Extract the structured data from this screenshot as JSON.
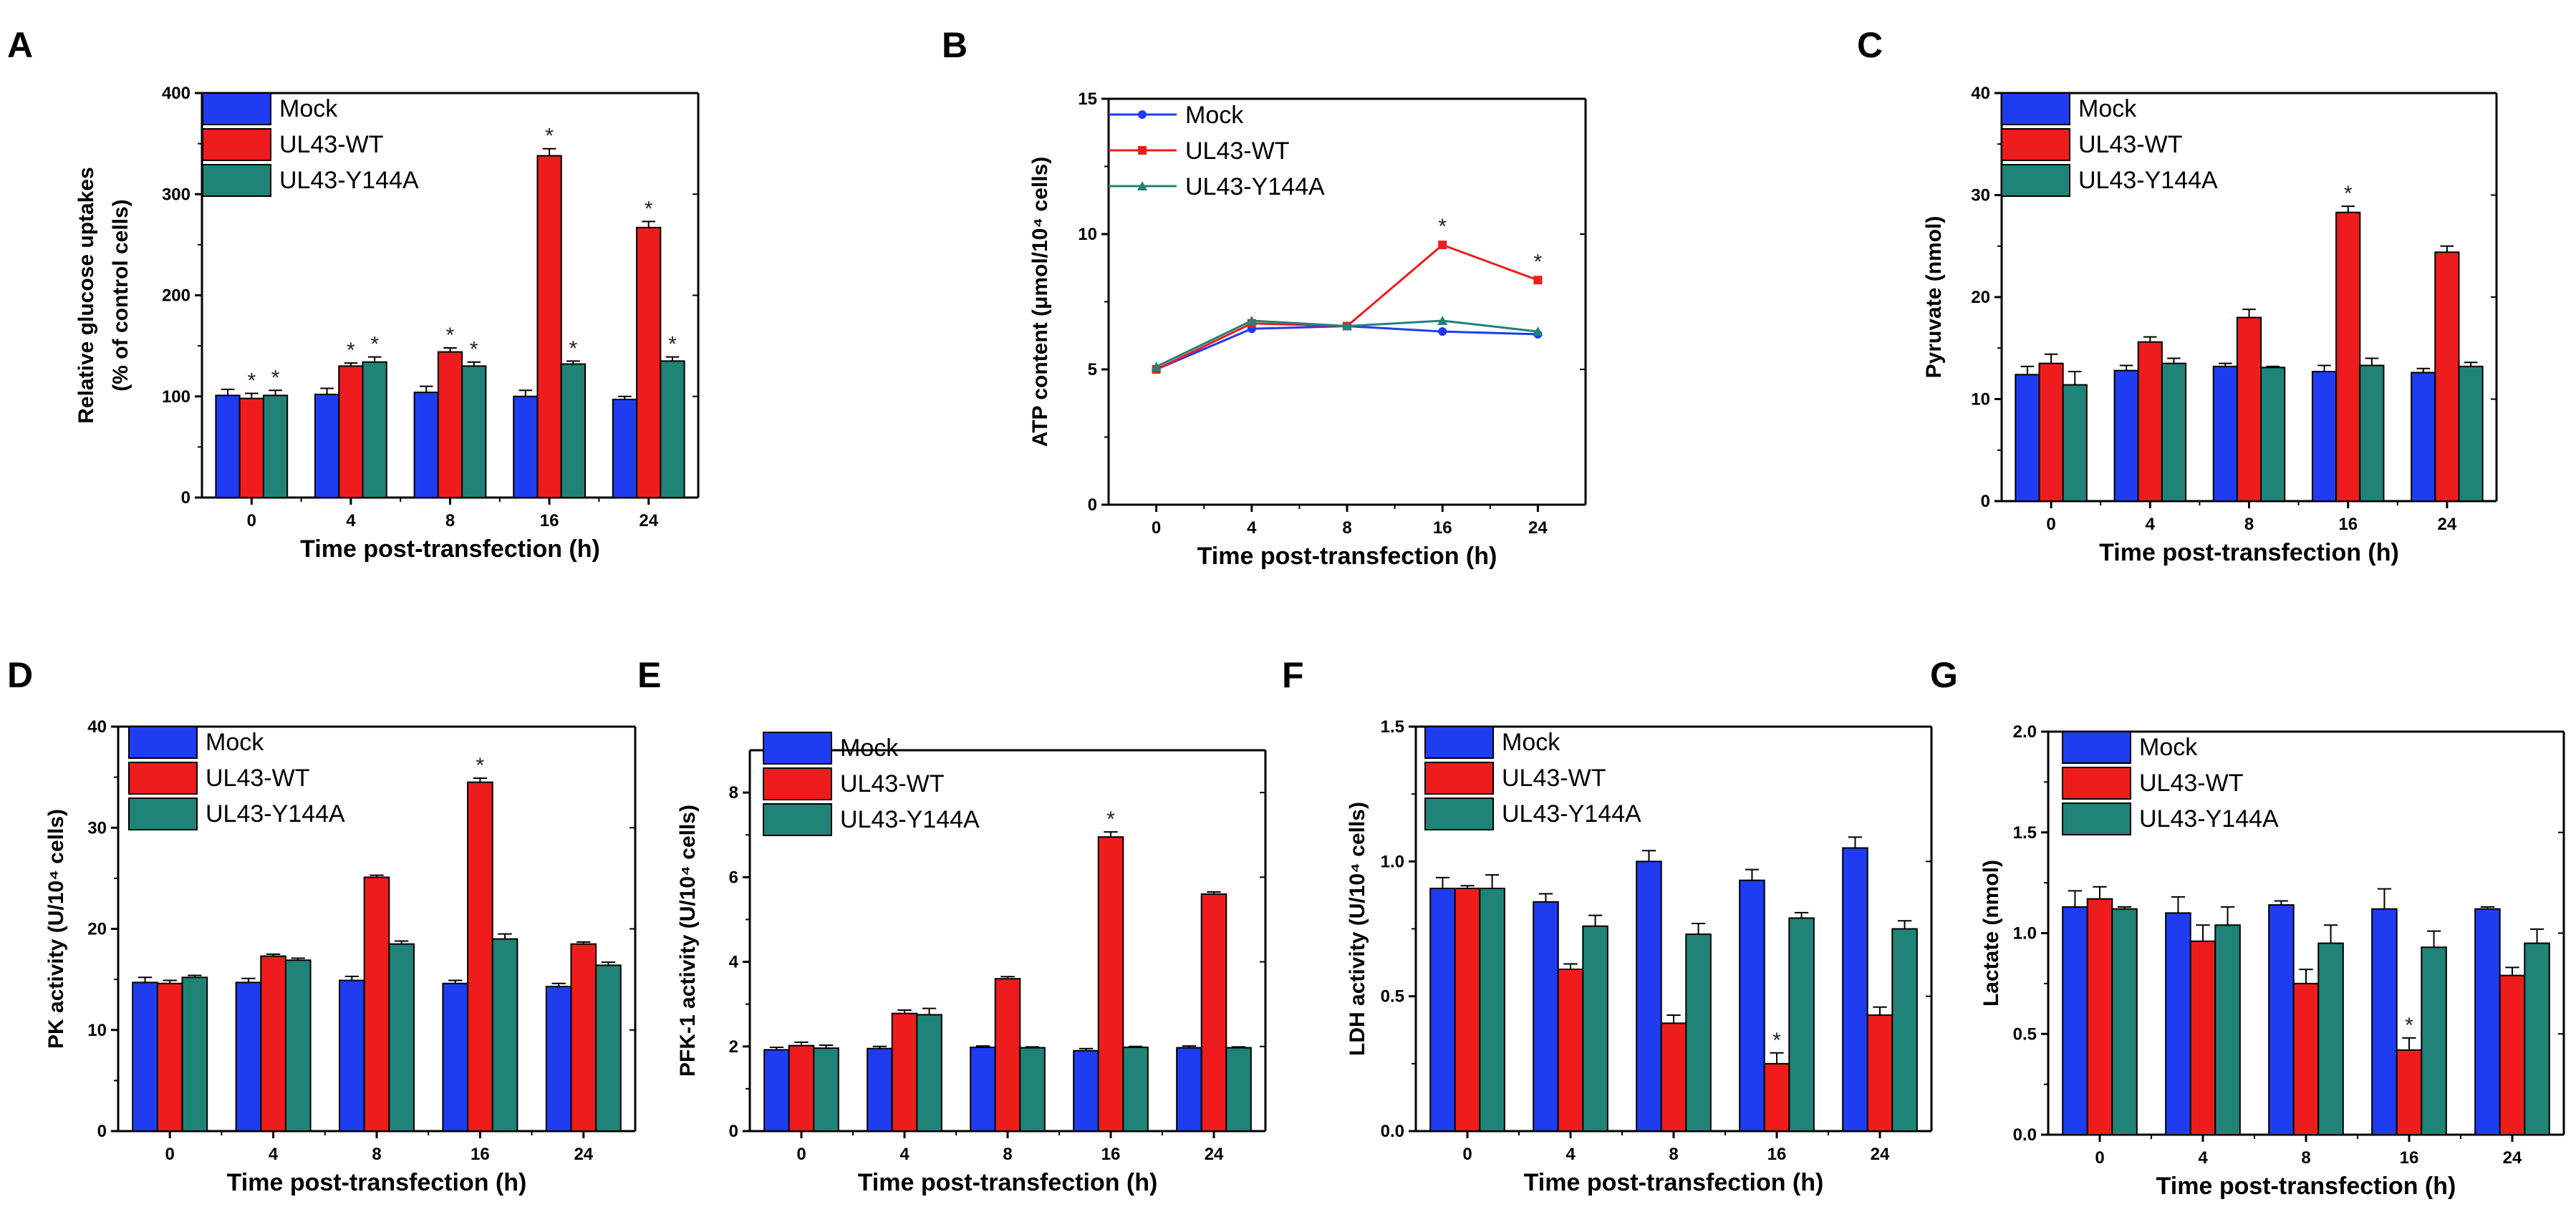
{
  "series_colors": {
    "Mock": "#1f3cf0",
    "UL43-WT": "#ee1c1c",
    "UL43-Y144A": "#1f8377"
  },
  "chart_data": [
    {
      "panel": "A",
      "type": "bar",
      "categories": [
        "0",
        "4",
        "8",
        "16",
        "24"
      ],
      "ylabel": "Relative glucose uptakes",
      "ylabel2": "(% of control cells)",
      "xlabel": "Time post-transfection (h)",
      "ylim": [
        0,
        400
      ],
      "yticks": [
        "0",
        "100",
        "200",
        "300",
        "400"
      ],
      "series": [
        {
          "name": "Mock",
          "values": [
            101,
            102,
            104,
            100,
            97
          ],
          "errors": [
            6,
            6,
            6,
            6,
            3
          ]
        },
        {
          "name": "UL43-WT",
          "values": [
            98,
            130,
            144,
            338,
            267
          ],
          "errors": [
            5,
            3,
            4,
            7,
            6
          ],
          "stars": [
            true,
            true,
            true,
            true,
            true
          ]
        },
        {
          "name": "UL43-Y144A",
          "values": [
            101,
            134,
            130,
            132,
            135
          ],
          "errors": [
            5,
            5,
            4,
            3,
            4
          ],
          "stars": [
            true,
            true,
            true,
            true,
            true
          ]
        }
      ],
      "legend": [
        "Mock",
        "UL43-WT",
        "UL43-Y144A"
      ]
    },
    {
      "panel": "B",
      "type": "line",
      "categories": [
        "0",
        "4",
        "8",
        "16",
        "24"
      ],
      "ylabel": "ATP content (μmol/10⁴ cells)",
      "xlabel": "Time post-transfection (h)",
      "ylim": [
        0,
        15
      ],
      "yticks": [
        "0",
        "5",
        "10",
        "15"
      ],
      "series": [
        {
          "name": "Mock",
          "values": [
            5.0,
            6.5,
            6.6,
            6.4,
            6.3
          ]
        },
        {
          "name": "UL43-WT",
          "values": [
            5.0,
            6.7,
            6.6,
            9.6,
            8.3
          ],
          "stars": [
            false,
            false,
            false,
            true,
            true
          ]
        },
        {
          "name": "UL43-Y144A",
          "values": [
            5.1,
            6.8,
            6.6,
            6.8,
            6.4
          ]
        }
      ],
      "legend": [
        "Mock",
        "UL43-WT",
        "UL43-Y144A"
      ]
    },
    {
      "panel": "C",
      "type": "bar",
      "categories": [
        "0",
        "4",
        "8",
        "16",
        "24"
      ],
      "ylabel": "Pyruvate (nmol)",
      "xlabel": "Time post-transfection (h)",
      "ylim": [
        0,
        40
      ],
      "yticks": [
        "0",
        "10",
        "20",
        "30",
        "40"
      ],
      "series": [
        {
          "name": "Mock",
          "values": [
            12.4,
            12.8,
            13.2,
            12.7,
            12.6
          ],
          "errors": [
            0.8,
            0.5,
            0.3,
            0.6,
            0.4
          ]
        },
        {
          "name": "UL43-WT",
          "values": [
            13.5,
            15.6,
            18.0,
            28.3,
            24.4
          ],
          "errors": [
            0.9,
            0.5,
            0.8,
            0.6,
            0.6
          ],
          "stars": [
            false,
            false,
            false,
            true,
            false
          ]
        },
        {
          "name": "UL43-Y144A",
          "values": [
            11.4,
            13.5,
            13.1,
            13.3,
            13.2
          ],
          "errors": [
            1.3,
            0.5,
            0.1,
            0.7,
            0.4
          ]
        }
      ],
      "legend": [
        "Mock",
        "UL43-WT",
        "UL43-Y144A"
      ]
    },
    {
      "panel": "D",
      "type": "bar",
      "categories": [
        "0",
        "4",
        "8",
        "16",
        "24"
      ],
      "ylabel": "PK activity (U/10⁴ cells)",
      "xlabel": "Time post-transfection (h)",
      "ylim": [
        0,
        40
      ],
      "yticks": [
        "0",
        "10",
        "20",
        "30",
        "40"
      ],
      "series": [
        {
          "name": "Mock",
          "values": [
            14.7,
            14.7,
            14.9,
            14.6,
            14.3
          ],
          "errors": [
            0.5,
            0.4,
            0.4,
            0.3,
            0.3
          ]
        },
        {
          "name": "UL43-WT",
          "values": [
            14.6,
            17.3,
            25.1,
            34.5,
            18.5
          ],
          "errors": [
            0.3,
            0.2,
            0.2,
            0.4,
            0.2
          ],
          "stars": [
            false,
            false,
            false,
            true,
            false
          ]
        },
        {
          "name": "UL43-Y144A",
          "values": [
            15.2,
            16.9,
            18.5,
            19.0,
            16.4
          ],
          "errors": [
            0.2,
            0.2,
            0.3,
            0.5,
            0.3
          ]
        }
      ],
      "legend": [
        "Mock",
        "UL43-WT",
        "UL43-Y144A"
      ]
    },
    {
      "panel": "E",
      "type": "bar",
      "categories": [
        "0",
        "4",
        "8",
        "16",
        "24"
      ],
      "ylabel": "PFK-1 activity (U/10⁴ cells)",
      "xlabel": "Time post-transfection (h)",
      "ylim": [
        0,
        9
      ],
      "yticks": [
        "0",
        "2",
        "4",
        "6",
        "8"
      ],
      "series": [
        {
          "name": "Mock",
          "values": [
            1.92,
            1.95,
            1.98,
            1.9,
            1.97
          ],
          "errors": [
            0.06,
            0.05,
            0.03,
            0.05,
            0.04
          ]
        },
        {
          "name": "UL43-WT",
          "values": [
            2.02,
            2.78,
            3.6,
            6.95,
            5.6
          ],
          "errors": [
            0.08,
            0.08,
            0.05,
            0.12,
            0.05
          ],
          "stars": [
            false,
            false,
            false,
            true,
            false
          ]
        },
        {
          "name": "UL43-Y144A",
          "values": [
            1.96,
            2.75,
            1.97,
            1.98,
            1.97
          ],
          "errors": [
            0.07,
            0.15,
            0.02,
            0.02,
            0.02
          ]
        }
      ],
      "legend": [
        "Mock",
        "UL43-WT",
        "UL43-Y144A"
      ]
    },
    {
      "panel": "F",
      "type": "bar",
      "categories": [
        "0",
        "4",
        "8",
        "16",
        "24"
      ],
      "ylabel": "LDH activity (U/10⁴ cells)",
      "xlabel": "Time post-transfection (h)",
      "ylim": [
        0,
        1.5
      ],
      "yticks": [
        "0.0",
        "0.5",
        "1.0",
        "1.5"
      ],
      "series": [
        {
          "name": "Mock",
          "values": [
            0.9,
            0.85,
            1.0,
            0.93,
            1.05
          ],
          "errors": [
            0.04,
            0.03,
            0.04,
            0.04,
            0.04
          ]
        },
        {
          "name": "UL43-WT",
          "values": [
            0.9,
            0.6,
            0.4,
            0.25,
            0.43
          ],
          "errors": [
            0.01,
            0.02,
            0.03,
            0.04,
            0.03
          ],
          "stars": [
            false,
            false,
            false,
            true,
            false
          ]
        },
        {
          "name": "UL43-Y144A",
          "values": [
            0.9,
            0.76,
            0.73,
            0.79,
            0.75
          ],
          "errors": [
            0.05,
            0.04,
            0.04,
            0.02,
            0.03
          ]
        }
      ],
      "legend": [
        "Mock",
        "UL43-WT",
        "UL43-Y144A"
      ]
    },
    {
      "panel": "G",
      "type": "bar",
      "categories": [
        "0",
        "4",
        "8",
        "16",
        "24"
      ],
      "ylabel": "Lactate (nmol)",
      "xlabel": "Time post-transfection (h)",
      "ylim": [
        0,
        2.0
      ],
      "yticks": [
        "0.0",
        "0.5",
        "1.0",
        "1.5",
        "2.0"
      ],
      "series": [
        {
          "name": "Mock",
          "values": [
            1.13,
            1.1,
            1.14,
            1.12,
            1.12
          ],
          "errors": [
            0.08,
            0.08,
            0.02,
            0.1,
            0.01
          ]
        },
        {
          "name": "UL43-WT",
          "values": [
            1.17,
            0.96,
            0.75,
            0.42,
            0.79
          ],
          "errors": [
            0.06,
            0.08,
            0.07,
            0.06,
            0.04
          ],
          "stars": [
            false,
            false,
            false,
            true,
            false
          ]
        },
        {
          "name": "UL43-Y144A",
          "values": [
            1.12,
            1.04,
            0.95,
            0.93,
            0.95
          ],
          "errors": [
            0.01,
            0.09,
            0.09,
            0.08,
            0.07
          ]
        }
      ],
      "legend": [
        "Mock",
        "UL43-WT",
        "UL43-Y144A"
      ]
    }
  ],
  "star_symbol": "*"
}
